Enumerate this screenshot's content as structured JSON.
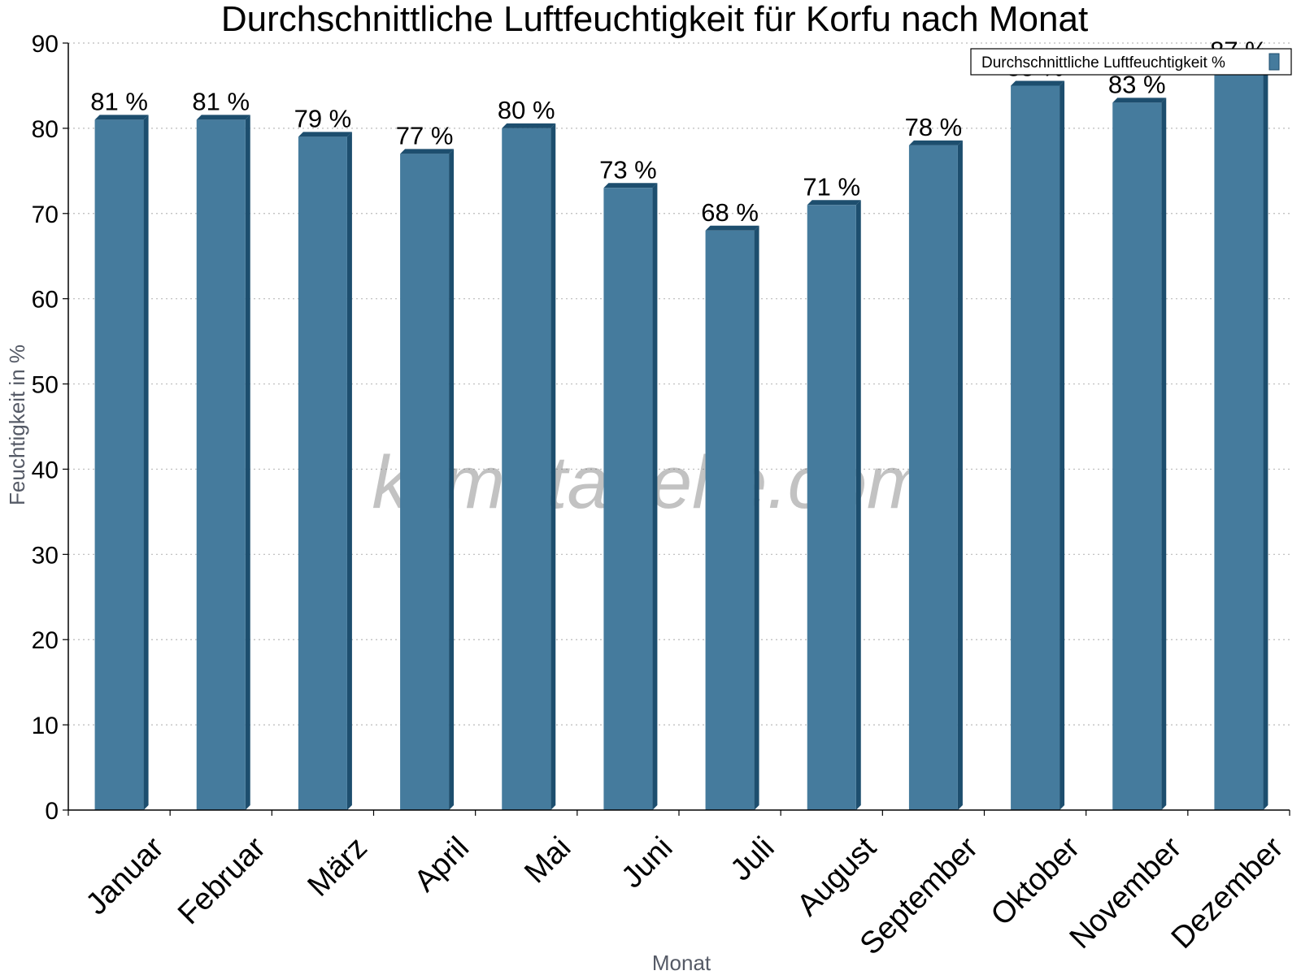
{
  "chart_data": {
    "type": "bar",
    "title": "Durchschnittliche Luftfeuchtigkeit für Korfu nach Monat",
    "xlabel": "Monat",
    "ylabel": "Feuchtigkeit in %",
    "categories": [
      "Januar",
      "Februar",
      "März",
      "April",
      "Mai",
      "Juni",
      "Juli",
      "August",
      "September",
      "Oktober",
      "November",
      "Dezember"
    ],
    "series": [
      {
        "name": "Durchschnittliche Luftfeuchtigkeit %",
        "values": [
          81,
          81,
          79,
          77,
          80,
          73,
          68,
          71,
          78,
          85,
          83,
          87
        ],
        "labels": [
          "81 %",
          "81 %",
          "79 %",
          "77 %",
          "80 %",
          "73 %",
          "68 %",
          "71 %",
          "78 %",
          "85 %",
          "83 %",
          "87 %"
        ],
        "color": "#457b9d"
      }
    ],
    "ylim": [
      0,
      90
    ],
    "yticks": [
      0,
      10,
      20,
      30,
      40,
      50,
      60,
      70,
      80,
      90
    ],
    "grid": true,
    "legend_position": "top-right"
  },
  "watermark": "klimatabelle.com",
  "colors": {
    "bar_front": "#457b9d",
    "bar_side": "#1d4e6e",
    "bar_top": "#1d4e6e",
    "grid": "#bbbbbb"
  }
}
